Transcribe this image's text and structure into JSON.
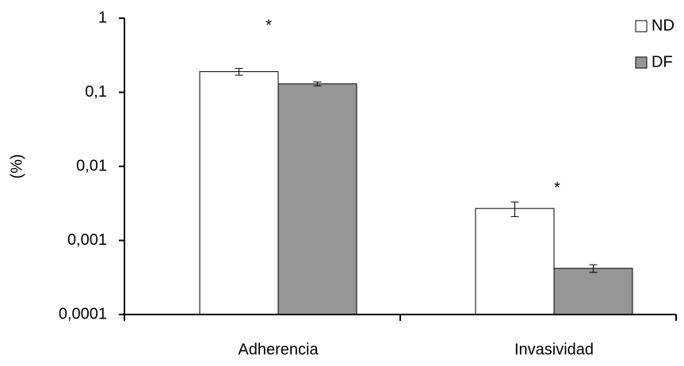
{
  "chart_data": {
    "type": "bar",
    "y_label": "(%)",
    "log_scale": true,
    "categories": [
      "Adherencia",
      "Invasividad"
    ],
    "series": [
      {
        "name": "ND",
        "color": "#ffffff",
        "values": [
          0.19,
          0.0027
        ],
        "errors": [
          0.02,
          0.0006
        ]
      },
      {
        "name": "DF",
        "color": "#969696",
        "values": [
          0.13,
          0.00042
        ],
        "errors": [
          0.008,
          5e-05
        ]
      }
    ],
    "ylim": [
      0.0001,
      1
    ],
    "yticks": [
      {
        "value": 0.0001,
        "label": "0,0001"
      },
      {
        "value": 0.001,
        "label": "0,001"
      },
      {
        "value": 0.01,
        "label": "0,01"
      },
      {
        "value": 0.1,
        "label": "0,1"
      },
      1
    ],
    "annotations": [
      "*",
      "*"
    ],
    "legend": "upper right"
  }
}
